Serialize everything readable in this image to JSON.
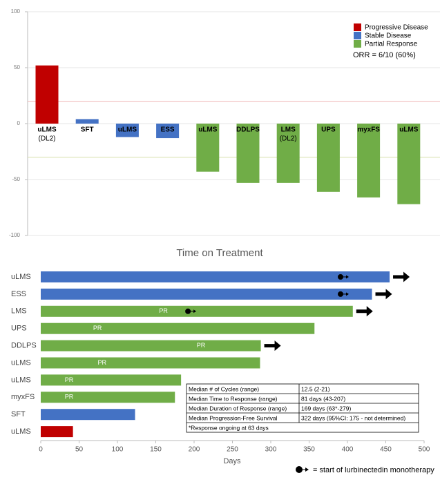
{
  "chart_data": [
    {
      "type": "waterfall",
      "categories": [
        "uLMS",
        "SFT",
        "uLMS",
        "ESS",
        "uLMS",
        "DDLPS",
        "LMS",
        "UPS",
        "myxFS",
        "uLMS"
      ],
      "category_notes": [
        "(DL2)",
        null,
        null,
        null,
        null,
        null,
        "(DL2)",
        null,
        null,
        null
      ],
      "series": [
        {
          "name": "Progressive Disease",
          "color": "#c00000",
          "values": [
            52,
            null,
            null,
            null,
            null,
            null,
            null,
            null,
            null,
            null
          ]
        },
        {
          "name": "Stable Disease",
          "color": "#4472c4",
          "values": [
            null,
            4,
            -12,
            -13,
            null,
            null,
            null,
            null,
            null,
            null
          ]
        },
        {
          "name": "Partial Response",
          "color": "#70ad47",
          "values": [
            null,
            null,
            null,
            null,
            -43,
            -53,
            -53,
            -61,
            -66,
            -72
          ]
        }
      ],
      "ylim": [
        -100,
        100
      ],
      "yticks": [
        -100,
        -50,
        0,
        50,
        100
      ],
      "grid": true,
      "reference_lines": [
        {
          "value": 20,
          "color": "#f0b4b4"
        },
        {
          "value": -30,
          "color": "#d4e0a8"
        }
      ],
      "annotation": "ORR = 6/10 (60%)",
      "legend": "upper right"
    },
    {
      "type": "swimmer",
      "title": "Time on Treatment",
      "xlabel": "Days",
      "categories": [
        "uLMS",
        "ESS",
        "LMS",
        "UPS",
        "DDLPS",
        "uLMS",
        "uLMS",
        "myxFS",
        "SFT",
        "uLMS"
      ],
      "values": [
        455,
        432,
        407,
        357,
        287,
        286,
        183,
        175,
        123,
        42
      ],
      "colors": [
        "#4472c4",
        "#4472c4",
        "#70ad47",
        "#70ad47",
        "#70ad47",
        "#70ad47",
        "#70ad47",
        "#70ad47",
        "#4472c4",
        "#c00000"
      ],
      "response_labels": [
        null,
        null,
        "PR",
        "PR",
        "PR",
        "PR",
        "PR",
        "PR",
        null,
        null
      ],
      "response_days": [
        null,
        null,
        160,
        74,
        209,
        80,
        37,
        37,
        null,
        null
      ],
      "ongoing": [
        true,
        true,
        true,
        false,
        true,
        false,
        false,
        false,
        false,
        false
      ],
      "monotherapy_start": [
        391,
        391,
        192,
        null,
        null,
        null,
        null,
        null,
        null,
        null
      ],
      "xlim": [
        0,
        500
      ],
      "xticks": [
        0,
        50,
        100,
        150,
        200,
        250,
        300,
        350,
        400,
        450,
        500
      ],
      "table": {
        "rows": [
          [
            "Median # of Cycles (range)",
            "12.5 (2-21)"
          ],
          [
            "Median Time to Response (range)",
            "81 days (43-207)"
          ],
          [
            "Median Duration of Response (range)",
            "169 days (63*-279)"
          ],
          [
            "Median Progression-Free Survival",
            "322 days (95%CI: 175 - not determined)"
          ]
        ],
        "footnote": "*Response ongoing at 63 days"
      },
      "marker_legend": "= start of lurbinectedin monotherapy"
    }
  ]
}
